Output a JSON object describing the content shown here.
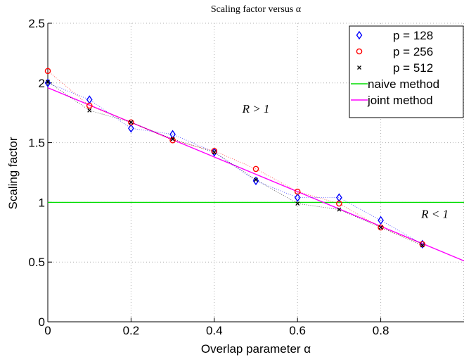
{
  "chart_data": {
    "type": "scatter",
    "title": "Scaling factor versus α",
    "xlabel": "Overlap parameter α",
    "ylabel": "Scaling factor",
    "xlim": [
      0,
      1
    ],
    "ylim": [
      0,
      2.5
    ],
    "xticks": [
      0,
      0.2,
      0.4,
      0.6,
      0.8
    ],
    "xtick_labels": [
      "0",
      "0.2",
      "0.4",
      "0.6",
      "0.8"
    ],
    "yticks": [
      0,
      0.5,
      1,
      1.5,
      2,
      2.5
    ],
    "ytick_labels": [
      "0",
      "0.5",
      "1",
      "1.5",
      "2",
      "2.5"
    ],
    "grid": true,
    "legend_position": "top-right",
    "series": [
      {
        "name": "p = 128",
        "marker": "diamond",
        "color": "#0000ff",
        "connector": "dotted",
        "x": [
          0,
          0.1,
          0.2,
          0.3,
          0.4,
          0.5,
          0.6,
          0.7,
          0.8,
          0.9
        ],
        "y": [
          2.0,
          1.86,
          1.62,
          1.57,
          1.42,
          1.18,
          1.04,
          1.04,
          0.85,
          0.65
        ]
      },
      {
        "name": "p = 256",
        "marker": "circle",
        "color": "#ff0000",
        "connector": "dotted",
        "x": [
          0,
          0.1,
          0.2,
          0.3,
          0.4,
          0.5,
          0.6,
          0.7,
          0.8,
          0.9
        ],
        "y": [
          2.1,
          1.81,
          1.67,
          1.52,
          1.43,
          1.28,
          1.09,
          0.99,
          0.79,
          0.65
        ]
      },
      {
        "name": "p = 512",
        "marker": "x",
        "color": "#000000",
        "connector": "dotted",
        "x": [
          0,
          0.1,
          0.2,
          0.3,
          0.4,
          0.5,
          0.6,
          0.7,
          0.8,
          0.9
        ],
        "y": [
          2.01,
          1.77,
          1.67,
          1.53,
          1.42,
          1.19,
          0.99,
          0.94,
          0.79,
          0.64
        ]
      },
      {
        "name": "naive method",
        "marker": "none",
        "color": "#00dd00",
        "type": "line",
        "x": [
          0,
          1
        ],
        "y": [
          1.0,
          1.0
        ]
      },
      {
        "name": "joint method",
        "marker": "none",
        "color": "#ff00ff",
        "type": "line",
        "x": [
          0,
          1
        ],
        "y": [
          1.96,
          0.51
        ]
      }
    ],
    "annotations": [
      {
        "text": "R > 1",
        "x": 0.5,
        "y": 1.75
      },
      {
        "text": "R < 1",
        "x": 0.93,
        "y": 0.87
      }
    ]
  }
}
